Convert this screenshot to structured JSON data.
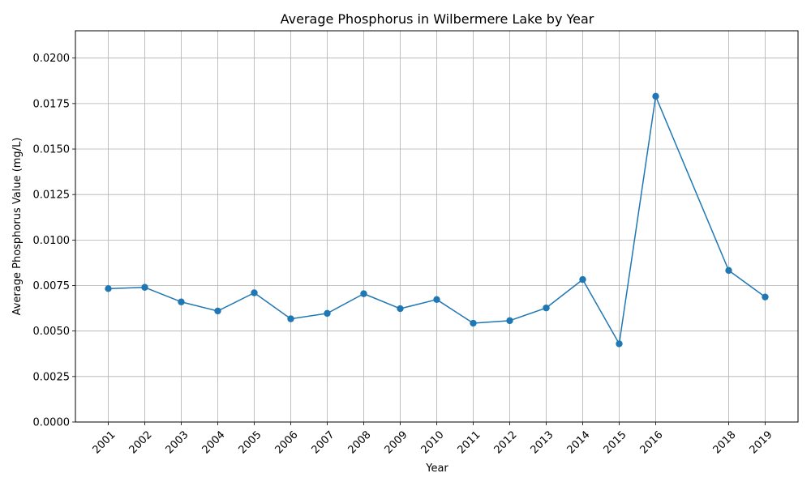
{
  "chart_data": {
    "type": "line",
    "title": "Average Phosphorus in Wilbermere Lake by Year",
    "xlabel": "Year",
    "ylabel": "Average Phosphorus Value (mg/L)",
    "x": [
      2001,
      2002,
      2003,
      2004,
      2005,
      2006,
      2007,
      2008,
      2009,
      2010,
      2011,
      2012,
      2013,
      2014,
      2015,
      2016,
      2018,
      2019
    ],
    "xticks": [
      "2001",
      "2002",
      "2003",
      "2004",
      "2005",
      "2006",
      "2007",
      "2008",
      "2009",
      "2010",
      "2011",
      "2012",
      "2013",
      "2014",
      "2015",
      "2016",
      "2018",
      "2019"
    ],
    "series": [
      {
        "values": [
          0.00733,
          0.0074,
          0.0066,
          0.0061,
          0.0071,
          0.00567,
          0.00597,
          0.00705,
          0.00623,
          0.00673,
          0.00543,
          0.00557,
          0.00627,
          0.00783,
          0.0043,
          0.0179,
          0.00833,
          0.00687
        ],
        "color": "#1f77b4"
      }
    ],
    "yticks": [
      "0.0000",
      "0.0025",
      "0.0050",
      "0.0075",
      "0.0100",
      "0.0125",
      "0.0150",
      "0.0175",
      "0.0200"
    ],
    "ytick_values": [
      0,
      0.0025,
      0.005,
      0.0075,
      0.01,
      0.0125,
      0.015,
      0.0175,
      0.02
    ],
    "xlim": [
      2000.1,
      2019.9
    ],
    "ylim": [
      0,
      0.0215
    ],
    "grid": true,
    "colors": {
      "grid": "#b0b0b0",
      "axis": "#000000"
    }
  }
}
